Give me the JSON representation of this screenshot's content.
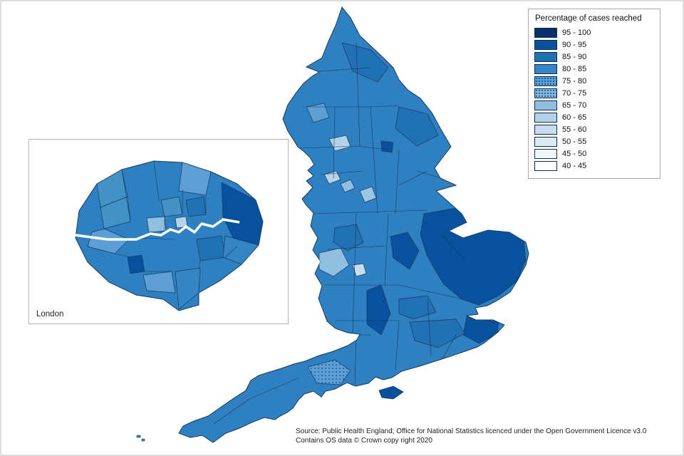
{
  "legend": {
    "title": "Percentage of cases reached",
    "items": [
      {
        "label": "95 - 100",
        "color": "#08306b",
        "pattern": false
      },
      {
        "label": "90 - 95",
        "color": "#08519c",
        "pattern": false
      },
      {
        "label": "85 - 90",
        "color": "#2171b5",
        "pattern": false
      },
      {
        "label": "80 - 85",
        "color": "#3585c5",
        "pattern": false
      },
      {
        "label": "75 - 80",
        "color": "#5b9fd4",
        "pattern": true
      },
      {
        "label": "70 - 75",
        "color": "#86b8de",
        "pattern": true
      },
      {
        "label": "65 - 70",
        "color": "#8fc0e2",
        "pattern": false
      },
      {
        "label": "60 - 65",
        "color": "#b4d3ea",
        "pattern": false
      },
      {
        "label": "55 - 60",
        "color": "#c8def0",
        "pattern": false
      },
      {
        "label": "50 - 55",
        "color": "#ddeaf6",
        "pattern": false
      },
      {
        "label": "45 - 50",
        "color": "#eef5fb",
        "pattern": false
      },
      {
        "label": "40 - 45",
        "color": "#ffffff",
        "pattern": false
      }
    ]
  },
  "inset": {
    "label": "London"
  },
  "source": {
    "line1": "Source: Public Health England; Office for National Statistics licenced under the Open Government Licence v3.0",
    "line2": "Contains OS data © Crown copy right 2020"
  }
}
